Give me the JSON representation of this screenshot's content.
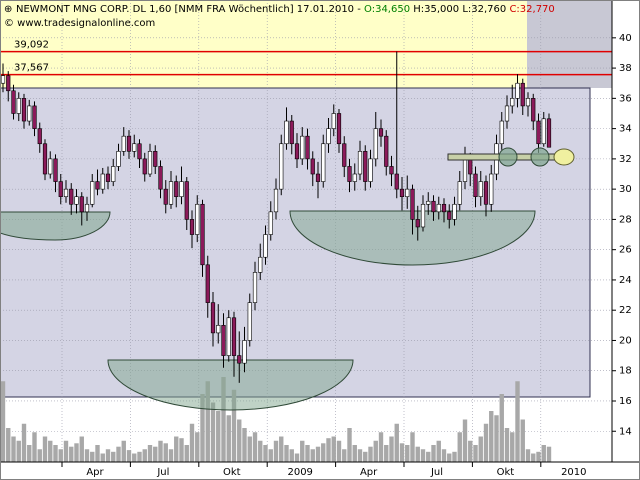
{
  "chart_data": {
    "type": "candlestick",
    "header": {
      "title": "NEWMONT MNG CORP. DL 1,60 [NMM FRA  Wöchentlich] 17.01.2010 - ",
      "open": "O:34,650",
      "rest": " H:35,000 L:32,760 ",
      "close": "C:32,770",
      "source": "© www.tradesignalonline.com"
    },
    "ylim": [
      12.1,
      42.5
    ],
    "yticks": [
      14,
      16,
      18,
      20,
      22,
      24,
      26,
      28,
      30,
      32,
      34,
      36,
      38,
      40
    ],
    "levels": [
      {
        "value": 39.092,
        "label": "39,092"
      },
      {
        "value": 37.567,
        "label": "37,567"
      }
    ],
    "x_labels": [
      "Apr",
      "Jul",
      "Okt",
      "2009",
      "Apr",
      "Jul",
      "Okt",
      "2010"
    ],
    "up_color": "#ffffff",
    "down_color": "#8b1a5a",
    "volume_color": "#a8a8a8",
    "grid": true,
    "candles": [
      [
        37,
        38.3,
        36.4,
        37.5
      ],
      [
        37.5,
        37.8,
        35.8,
        36.5
      ],
      [
        36.5,
        36.9,
        34.6,
        35
      ],
      [
        35,
        36.4,
        34.5,
        36
      ],
      [
        36,
        36.3,
        34,
        34.5
      ],
      [
        34.5,
        35.9,
        34.2,
        35.5
      ],
      [
        35.5,
        35.8,
        33.5,
        34
      ],
      [
        34,
        34.4,
        32.4,
        33
      ],
      [
        33,
        33.3,
        30.6,
        31
      ],
      [
        31,
        32.5,
        30.7,
        32
      ],
      [
        32,
        32.3,
        29.8,
        30.5
      ],
      [
        30.5,
        31,
        29,
        29.5
      ],
      [
        29.5,
        30.6,
        29.1,
        30
      ],
      [
        30,
        30.4,
        28.3,
        29
      ],
      [
        29,
        30,
        28.4,
        29.5
      ],
      [
        29.5,
        29.8,
        27.6,
        28.5
      ],
      [
        28.5,
        29.5,
        27.9,
        29
      ],
      [
        29,
        31,
        28.8,
        30.5
      ],
      [
        30.5,
        31.3,
        29.6,
        30
      ],
      [
        30,
        31.4,
        29.7,
        31
      ],
      [
        31,
        31.5,
        30,
        30.5
      ],
      [
        30.5,
        32,
        30.2,
        31.5
      ],
      [
        31.5,
        33,
        31.2,
        32.5
      ],
      [
        32.5,
        34.1,
        32.2,
        33.5
      ],
      [
        33.5,
        33.9,
        32,
        32.5
      ],
      [
        32.5,
        33.6,
        32.1,
        33
      ],
      [
        33,
        33.3,
        31.4,
        32
      ],
      [
        32,
        32.4,
        30.5,
        31
      ],
      [
        31,
        33,
        30.8,
        32.5
      ],
      [
        32.5,
        32.9,
        31,
        31.5
      ],
      [
        31.5,
        31.9,
        29.4,
        30
      ],
      [
        30,
        30.6,
        28.4,
        29
      ],
      [
        29,
        31.2,
        28.7,
        30.5
      ],
      [
        30.5,
        30.9,
        28.8,
        29.5
      ],
      [
        29.5,
        31.5,
        29,
        30.5
      ],
      [
        30.5,
        30.8,
        27.3,
        28
      ],
      [
        28,
        28.6,
        26.1,
        27
      ],
      [
        27,
        29.6,
        26.5,
        29
      ],
      [
        29,
        29.3,
        24.2,
        25
      ],
      [
        25,
        25.6,
        21.5,
        22.5
      ],
      [
        22.5,
        23.2,
        19.6,
        20.5
      ],
      [
        20.5,
        22.4,
        19.8,
        21
      ],
      [
        21,
        21.8,
        18.2,
        19
      ],
      [
        19,
        22,
        18.6,
        21.5
      ],
      [
        21.5,
        21.9,
        17.6,
        19
      ],
      [
        19,
        20.6,
        17.2,
        18.5
      ],
      [
        18.5,
        20.9,
        17.9,
        20
      ],
      [
        20,
        23.1,
        19.6,
        22.5
      ],
      [
        22.5,
        25.2,
        22,
        24.5
      ],
      [
        24.5,
        26.4,
        24,
        25.5
      ],
      [
        25.5,
        27.6,
        25,
        27
      ],
      [
        27,
        29.2,
        26.6,
        28.5
      ],
      [
        28.5,
        30.7,
        28,
        30
      ],
      [
        30,
        33.6,
        29.6,
        33
      ],
      [
        33,
        35.4,
        32.6,
        34.5
      ],
      [
        34.5,
        34.9,
        32.3,
        33
      ],
      [
        33,
        33.7,
        31.4,
        32
      ],
      [
        32,
        34.1,
        31.6,
        33.5
      ],
      [
        33.5,
        34,
        31.3,
        32
      ],
      [
        32,
        32.5,
        30.2,
        31
      ],
      [
        31,
        31.8,
        29.4,
        30.5
      ],
      [
        30.5,
        33.6,
        30.1,
        33
      ],
      [
        33,
        34.7,
        32.4,
        34
      ],
      [
        34,
        35.6,
        33.5,
        35
      ],
      [
        35,
        35.3,
        32.4,
        33
      ],
      [
        33,
        33.5,
        30.8,
        31.5
      ],
      [
        31.5,
        32,
        29.8,
        30.5
      ],
      [
        30.5,
        31.7,
        29.9,
        31
      ],
      [
        31,
        33.2,
        30.6,
        32.5
      ],
      [
        32.5,
        32.9,
        29.9,
        30.5
      ],
      [
        30.5,
        32.6,
        30.1,
        32
      ],
      [
        32,
        35.1,
        31.5,
        34
      ],
      [
        34,
        34.6,
        32.8,
        33.5
      ],
      [
        33.5,
        33.9,
        30.9,
        31.5
      ],
      [
        31.5,
        32.2,
        30.2,
        31
      ],
      [
        31,
        39.1,
        29.4,
        30
      ],
      [
        30,
        30.8,
        28.6,
        29.5
      ],
      [
        29.5,
        30.9,
        28.7,
        30
      ],
      [
        30,
        30.3,
        27,
        28
      ],
      [
        28,
        28.9,
        26.6,
        27.5
      ],
      [
        27.5,
        29.6,
        27.2,
        29
      ],
      [
        29,
        29.8,
        28.3,
        29.2
      ],
      [
        29.2,
        29.6,
        27.9,
        28.5
      ],
      [
        28.5,
        29.5,
        28,
        29
      ],
      [
        29,
        29.4,
        27.8,
        28.5
      ],
      [
        28.5,
        29,
        27.4,
        28
      ],
      [
        28,
        29.5,
        27.6,
        29
      ],
      [
        29,
        31.2,
        28.6,
        30.5
      ],
      [
        30.5,
        32.8,
        30,
        32
      ],
      [
        32,
        32.4,
        30.2,
        31
      ],
      [
        31,
        31.5,
        28.8,
        29.5
      ],
      [
        29.5,
        31.2,
        28.9,
        30.5
      ],
      [
        30.5,
        30.9,
        28.2,
        29
      ],
      [
        29,
        31.6,
        28.5,
        31
      ],
      [
        31,
        33.6,
        30.6,
        33
      ],
      [
        33,
        35.1,
        32.6,
        34.5
      ],
      [
        34.5,
        36.2,
        34,
        35.5
      ],
      [
        35.5,
        36.9,
        35,
        36
      ],
      [
        36,
        37.6,
        35.4,
        37
      ],
      [
        37,
        37.3,
        34.9,
        35.5
      ],
      [
        35.5,
        36.4,
        34.8,
        36
      ],
      [
        36,
        36.3,
        33.9,
        34.5
      ],
      [
        34.5,
        35,
        32.4,
        33
      ],
      [
        33,
        35.1,
        32.8,
        34.65
      ],
      [
        34.65,
        35,
        32.76,
        32.77
      ]
    ],
    "volume": [
      95,
      40,
      30,
      25,
      45,
      20,
      35,
      15,
      30,
      25,
      20,
      15,
      25,
      18,
      22,
      30,
      15,
      12,
      20,
      10,
      15,
      12,
      18,
      25,
      14,
      10,
      12,
      15,
      20,
      18,
      25,
      22,
      15,
      30,
      28,
      20,
      45,
      35,
      80,
      95,
      70,
      60,
      100,
      55,
      85,
      50,
      40,
      30,
      35,
      25,
      20,
      15,
      25,
      30,
      20,
      15,
      10,
      25,
      20,
      15,
      18,
      22,
      28,
      30,
      25,
      15,
      40,
      20,
      15,
      12,
      18,
      25,
      35,
      20,
      30,
      45,
      22,
      20,
      35,
      18,
      15,
      12,
      20,
      25,
      15,
      10,
      12,
      35,
      50,
      25,
      20,
      30,
      45,
      60,
      55,
      80,
      40,
      35,
      95,
      50,
      15,
      10,
      12,
      20,
      18
    ]
  }
}
